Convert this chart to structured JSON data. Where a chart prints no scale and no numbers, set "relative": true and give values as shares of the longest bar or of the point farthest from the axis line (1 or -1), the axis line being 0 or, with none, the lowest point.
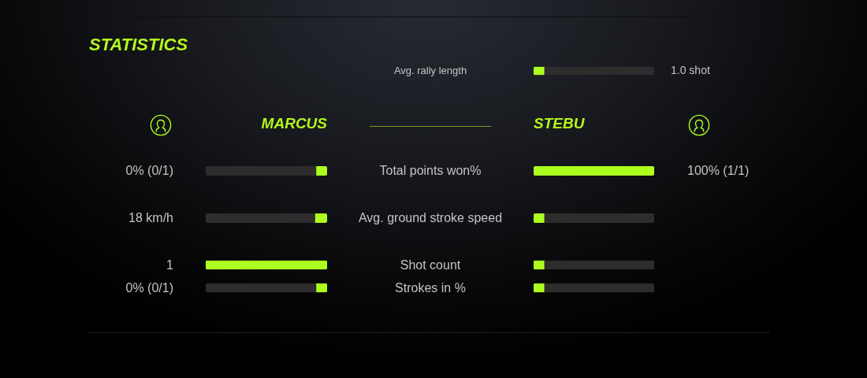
{
  "chart_data": [
    {
      "type": "other",
      "title": "STATISTICS"
    },
    {
      "type": "bar",
      "orientation": "horizontal",
      "relative": true,
      "stacked": true,
      "categories": [
        "Avg. rally length"
      ],
      "series": [
        {
          "color": "#adff1f",
          "values": [
            0.09
          ]
        },
        {
          "color": "#2e2c2d",
          "values": [
            0.91
          ]
        }
      ],
      "annotations": [
        "1.0 shot"
      ]
    },
    {
      "type": "bar",
      "title": "MARCUS",
      "orientation": "horizontal",
      "relative": true,
      "stacked": true,
      "categories": [
        "Total points won%",
        "Avg. ground stroke speed"
      ],
      "series": [
        {
          "color": "#adff1f",
          "values": [
            0.09,
            0.1
          ]
        },
        {
          "color": "#2e2c2d",
          "values": [
            0.91,
            0.9
          ]
        }
      ],
      "annotations": [
        "0% (0/1)",
        "18 km/h"
      ]
    },
    {
      "type": "bar",
      "title": "STEBU",
      "orientation": "horizontal",
      "relative": true,
      "stacked": true,
      "categories": [
        null,
        null
      ],
      "series": [
        {
          "color": "#adff1f",
          "values": [
            1,
            0.09
          ]
        },
        {
          "color": "#2e2c2d",
          "values": [
            null,
            0.91
          ]
        }
      ],
      "annotations": [
        "100% (1/1)"
      ]
    },
    {
      "type": "bar",
      "orientation": "horizontal",
      "relative": true,
      "stacked": true,
      "categories": [
        null,
        null
      ],
      "series": [
        {
          "color": "#adff1f",
          "values": [
            1,
            0.09
          ]
        },
        {
          "color": "#2e2c2d",
          "values": [
            null,
            0.91
          ]
        }
      ],
      "annotations": [
        "1",
        "0% (0/1)"
      ]
    },
    {
      "type": "bar",
      "orientation": "horizontal",
      "relative": true,
      "stacked": true,
      "categories": [
        "Shot count",
        "Strokes in %"
      ],
      "series": [
        {
          "color": "#adff1f",
          "values": [
            0.09,
            0.09
          ]
        },
        {
          "color": "#2e2c2d",
          "values": [
            0.91,
            0.91
          ]
        }
      ]
    }
  ]
}
